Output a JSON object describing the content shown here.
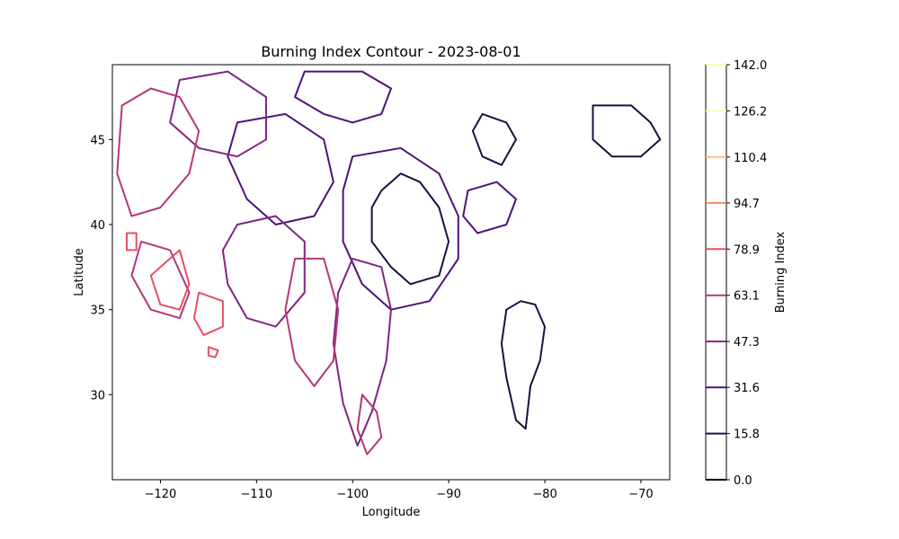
{
  "chart_data": {
    "type": "contour",
    "title": "Burning Index Contour - 2023-08-01",
    "xlabel": "Longitude",
    "ylabel": "Latitude",
    "xlim": [
      -125,
      -67
    ],
    "ylim": [
      25,
      49.4
    ],
    "xticks": [
      -120,
      -110,
      -100,
      -90,
      -80,
      -70
    ],
    "yticks": [
      30,
      35,
      40,
      45
    ],
    "colorbar": {
      "label": "Burning Index",
      "range": [
        0,
        142
      ],
      "levels": [
        0.0,
        15.8,
        31.6,
        47.3,
        63.1,
        78.9,
        94.7,
        110.4,
        126.2,
        142.0
      ],
      "level_labels": [
        "0.0",
        "15.8",
        "31.6",
        "47.3",
        "63.1",
        "78.9",
        "94.7",
        "110.4",
        "126.2",
        "142.0"
      ],
      "colors": [
        "#000004",
        "#1c1044",
        "#4f127b",
        "#812581",
        "#b5367a",
        "#e55064",
        "#fb8761",
        "#fec287",
        "#fcfdbf",
        "#fcffa4"
      ]
    },
    "regions": [
      {
        "level": 15.8,
        "points": [
          [
            -97,
            42
          ],
          [
            -95,
            43
          ],
          [
            -93,
            42.5
          ],
          [
            -91,
            41
          ],
          [
            -90,
            39
          ],
          [
            -91,
            37
          ],
          [
            -94,
            36.5
          ],
          [
            -96,
            37.5
          ],
          [
            -98,
            39
          ],
          [
            -98,
            41
          ]
        ]
      },
      {
        "level": 15.8,
        "points": [
          [
            -84,
            35
          ],
          [
            -82.5,
            35.5
          ],
          [
            -81,
            35.3
          ],
          [
            -80,
            34
          ],
          [
            -80.5,
            32
          ],
          [
            -81.5,
            30.5
          ],
          [
            -82,
            28
          ],
          [
            -83,
            28.5
          ],
          [
            -84,
            31
          ],
          [
            -84.5,
            33
          ]
        ]
      },
      {
        "level": 15.8,
        "points": [
          [
            -75,
            47
          ],
          [
            -71,
            47
          ],
          [
            -69,
            46
          ],
          [
            -68,
            45
          ],
          [
            -70,
            44
          ],
          [
            -73,
            44
          ],
          [
            -75,
            45
          ]
        ]
      },
      {
        "level": 15.8,
        "points": [
          [
            -86.5,
            46.5
          ],
          [
            -84,
            46
          ],
          [
            -83,
            45
          ],
          [
            -84.5,
            43.5
          ],
          [
            -86.5,
            44
          ],
          [
            -87.5,
            45.5
          ]
        ]
      },
      {
        "level": 31.6,
        "points": [
          [
            -105,
            49
          ],
          [
            -99,
            49
          ],
          [
            -96,
            48
          ],
          [
            -97,
            46.5
          ],
          [
            -100,
            46
          ],
          [
            -103,
            46.5
          ],
          [
            -106,
            47.5
          ]
        ]
      },
      {
        "level": 31.6,
        "points": [
          [
            -100,
            44
          ],
          [
            -95,
            44.5
          ],
          [
            -91,
            43
          ],
          [
            -89,
            40.5
          ],
          [
            -89,
            38
          ],
          [
            -92,
            35.5
          ],
          [
            -96,
            35
          ],
          [
            -99,
            36.5
          ],
          [
            -101,
            39
          ],
          [
            -101,
            42
          ]
        ]
      },
      {
        "level": 31.6,
        "points": [
          [
            -112,
            46
          ],
          [
            -107,
            46.5
          ],
          [
            -103,
            45
          ],
          [
            -102,
            42.5
          ],
          [
            -104,
            40.5
          ],
          [
            -108,
            40
          ],
          [
            -111,
            41.5
          ],
          [
            -113,
            44
          ]
        ]
      },
      {
        "level": 31.6,
        "points": [
          [
            -88,
            42
          ],
          [
            -85,
            42.5
          ],
          [
            -83,
            41.5
          ],
          [
            -84,
            40
          ],
          [
            -87,
            39.5
          ],
          [
            -88.5,
            40.5
          ]
        ]
      },
      {
        "level": 47.3,
        "points": [
          [
            -100,
            38
          ],
          [
            -97,
            37.5
          ],
          [
            -96,
            35
          ],
          [
            -96.5,
            32
          ],
          [
            -98,
            29
          ],
          [
            -99.5,
            27
          ],
          [
            -101,
            29.5
          ],
          [
            -102,
            33
          ],
          [
            -101.5,
            36
          ]
        ]
      },
      {
        "level": 47.3,
        "points": [
          [
            -118,
            48.5
          ],
          [
            -113,
            49
          ],
          [
            -109,
            47.5
          ],
          [
            -109,
            45
          ],
          [
            -112,
            44
          ],
          [
            -116,
            44.5
          ],
          [
            -119,
            46
          ]
        ]
      },
      {
        "level": 47.3,
        "points": [
          [
            -112,
            40
          ],
          [
            -108,
            40.5
          ],
          [
            -105,
            39
          ],
          [
            -105,
            36
          ],
          [
            -108,
            34
          ],
          [
            -111,
            34.5
          ],
          [
            -113,
            36.5
          ],
          [
            -113.5,
            38.5
          ]
        ]
      },
      {
        "level": 63.1,
        "points": [
          [
            -124,
            47
          ],
          [
            -121,
            48
          ],
          [
            -118,
            47.5
          ],
          [
            -116,
            45.5
          ],
          [
            -117,
            43
          ],
          [
            -120,
            41
          ],
          [
            -123,
            40.5
          ],
          [
            -124.5,
            43
          ]
        ]
      },
      {
        "level": 63.1,
        "points": [
          [
            -106,
            38
          ],
          [
            -103,
            38
          ],
          [
            -101.5,
            35
          ],
          [
            -102,
            32
          ],
          [
            -104,
            30.5
          ],
          [
            -106,
            32
          ],
          [
            -107,
            35
          ]
        ]
      },
      {
        "level": 63.1,
        "points": [
          [
            -99,
            30
          ],
          [
            -97.5,
            29
          ],
          [
            -97,
            27.5
          ],
          [
            -98.5,
            26.5
          ],
          [
            -99.5,
            28
          ]
        ]
      },
      {
        "level": 63.1,
        "points": [
          [
            -122,
            39
          ],
          [
            -119,
            38.5
          ],
          [
            -117,
            36
          ],
          [
            -118,
            34.5
          ],
          [
            -121,
            35
          ],
          [
            -123,
            37
          ]
        ]
      },
      {
        "level": 78.9,
        "points": [
          [
            -123.5,
            39.5
          ],
          [
            -122.5,
            39.5
          ],
          [
            -122.5,
            38.5
          ],
          [
            -123.5,
            38.5
          ]
        ]
      },
      {
        "level": 78.9,
        "points": [
          [
            -121,
            37
          ],
          [
            -118,
            38.5
          ],
          [
            -117,
            36.5
          ],
          [
            -118,
            35
          ],
          [
            -120,
            35.3
          ]
        ]
      },
      {
        "level": 78.9,
        "points": [
          [
            -116,
            36
          ],
          [
            -113.5,
            35.5
          ],
          [
            -113.5,
            34
          ],
          [
            -115.5,
            33.5
          ],
          [
            -116.5,
            34.5
          ]
        ]
      },
      {
        "level": 78.9,
        "points": [
          [
            -115,
            32.8
          ],
          [
            -114,
            32.6
          ],
          [
            -114.3,
            32.2
          ],
          [
            -115,
            32.3
          ]
        ]
      }
    ]
  }
}
